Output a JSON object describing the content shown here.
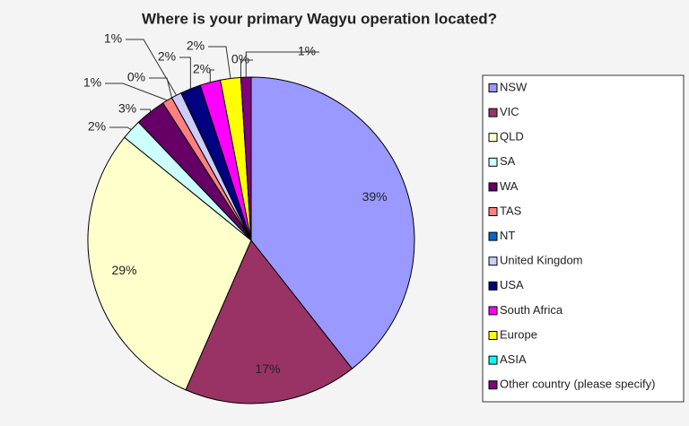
{
  "chart_data": {
    "type": "pie",
    "title": "Where is your primary Wagyu operation located?",
    "categories": [
      "NSW",
      "VIC",
      "QLD",
      "SA",
      "WA",
      "TAS",
      "NT",
      "United Kingdom",
      "USA",
      "South Africa",
      "Europe",
      "ASIA",
      "Other country (please specify)"
    ],
    "values": [
      39,
      17,
      29,
      2,
      3,
      1,
      0,
      1,
      2,
      2,
      2,
      0,
      1
    ],
    "value_labels": [
      "39%",
      "17%",
      "29%",
      "2%",
      "3%",
      "1%",
      "0%",
      "1%",
      "2%",
      "2%",
      "2%",
      "0%",
      "1%"
    ],
    "colors": [
      "#9999ff",
      "#993366",
      "#ffffcc",
      "#ccffff",
      "#660066",
      "#ff8080",
      "#0066cc",
      "#ccccff",
      "#000080",
      "#ff00ff",
      "#ffff00",
      "#00ffff",
      "#800080"
    ],
    "legend": "right"
  }
}
